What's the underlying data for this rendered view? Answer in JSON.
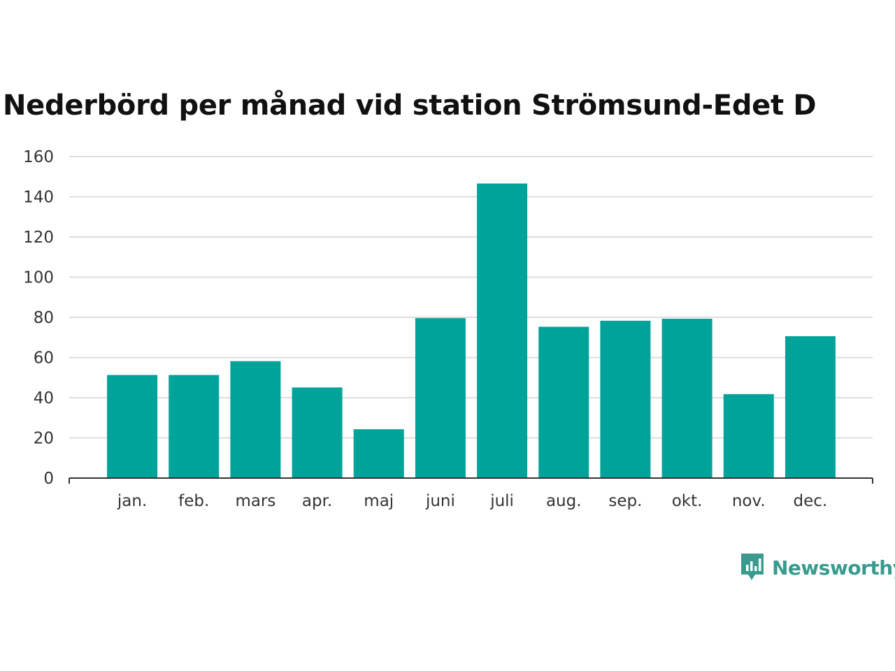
{
  "chart_data": {
    "type": "bar",
    "title": "Nederbörd per månad vid station Strömsund-Edet D",
    "categories": [
      "jan.",
      "feb.",
      "mars",
      "apr.",
      "maj",
      "juni",
      "juli",
      "aug.",
      "sep.",
      "okt.",
      "nov.",
      "dec."
    ],
    "values": [
      51.3,
      51.3,
      58.2,
      45.1,
      24.3,
      79.6,
      146.6,
      75.3,
      78.3,
      79.3,
      41.8,
      70.6
    ],
    "ylim": [
      0,
      160
    ],
    "yticks": [
      0,
      20,
      40,
      60,
      80,
      100,
      120,
      140,
      160
    ],
    "xlabel": "",
    "ylabel": "",
    "grid": true,
    "bar_color": "#00a39a"
  },
  "brand": {
    "name": "Newsworthy",
    "icon": "newsworthy-logo-icon",
    "color": "#3a9a8e"
  }
}
